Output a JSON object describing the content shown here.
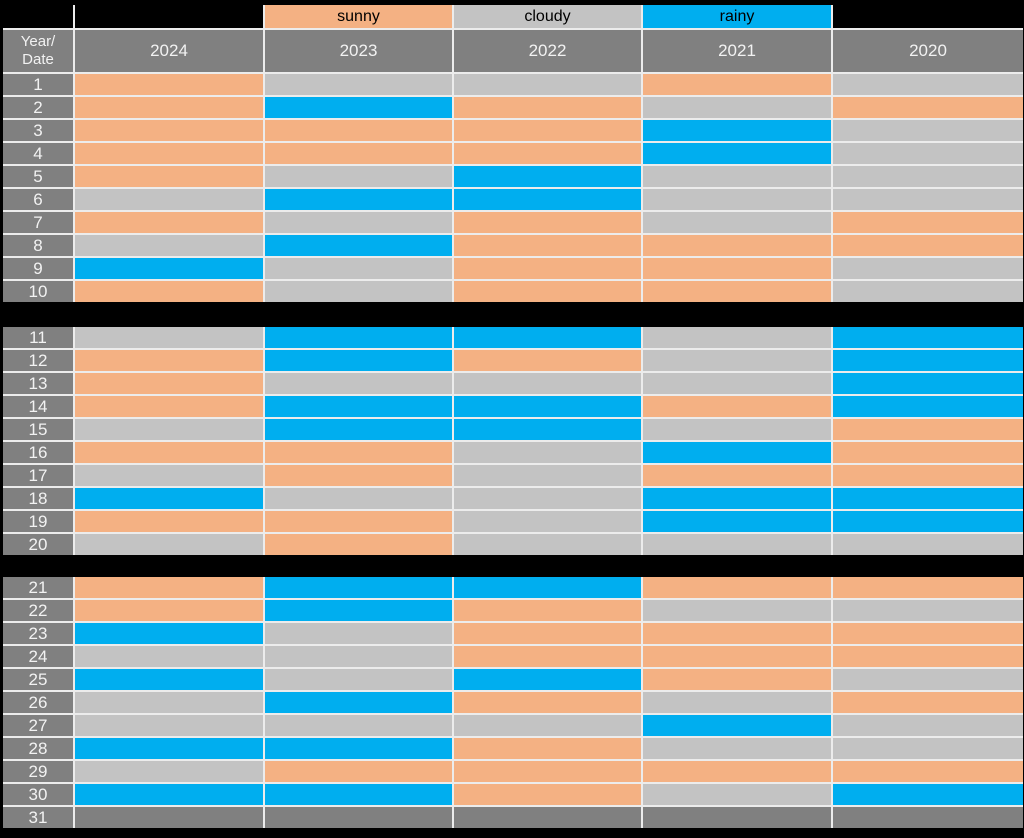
{
  "legend": {
    "items": [
      {
        "id": "sunny",
        "label": "sunny"
      },
      {
        "id": "cloudy",
        "label": "cloudy"
      },
      {
        "id": "rainy",
        "label": "rainy"
      }
    ]
  },
  "header": {
    "corner_label": "Year/\nDate",
    "years": [
      "2024",
      "2023",
      "2022",
      "2021",
      "2020"
    ]
  },
  "colors": {
    "sunny": "#F4B183",
    "cloudy": "#C3C3C3",
    "rainy": "#00AEEF",
    "empty": "#808080",
    "header_bg": "#808080",
    "header_text": "#F2F2F2",
    "legend_text": "#000000",
    "grid_line": "#ECECEC",
    "background": "#000000"
  },
  "chart_data": {
    "type": "heatmap",
    "columns": [
      "2024",
      "2023",
      "2022",
      "2021",
      "2020"
    ],
    "row_axis_label": "Year/Date",
    "legend_entries": [
      "sunny",
      "cloudy",
      "rainy"
    ],
    "legend_position": "top",
    "row_blocks": [
      [
        1,
        10
      ],
      [
        11,
        20
      ],
      [
        21,
        31
      ]
    ],
    "dates": [
      1,
      2,
      3,
      4,
      5,
      6,
      7,
      8,
      9,
      10,
      11,
      12,
      13,
      14,
      15,
      16,
      17,
      18,
      19,
      20,
      21,
      22,
      23,
      24,
      25,
      26,
      27,
      28,
      29,
      30,
      31
    ],
    "values": [
      [
        "sunny",
        "cloudy",
        "cloudy",
        "sunny",
        "cloudy"
      ],
      [
        "sunny",
        "rainy",
        "sunny",
        "cloudy",
        "sunny"
      ],
      [
        "sunny",
        "sunny",
        "sunny",
        "rainy",
        "cloudy"
      ],
      [
        "sunny",
        "sunny",
        "sunny",
        "rainy",
        "cloudy"
      ],
      [
        "sunny",
        "cloudy",
        "rainy",
        "cloudy",
        "cloudy"
      ],
      [
        "cloudy",
        "rainy",
        "rainy",
        "cloudy",
        "cloudy"
      ],
      [
        "sunny",
        "cloudy",
        "sunny",
        "cloudy",
        "sunny"
      ],
      [
        "cloudy",
        "rainy",
        "sunny",
        "sunny",
        "sunny"
      ],
      [
        "rainy",
        "cloudy",
        "sunny",
        "sunny",
        "cloudy"
      ],
      [
        "sunny",
        "cloudy",
        "sunny",
        "sunny",
        "cloudy"
      ],
      [
        "cloudy",
        "rainy",
        "rainy",
        "cloudy",
        "rainy"
      ],
      [
        "sunny",
        "rainy",
        "sunny",
        "cloudy",
        "rainy"
      ],
      [
        "sunny",
        "cloudy",
        "cloudy",
        "cloudy",
        "rainy"
      ],
      [
        "sunny",
        "rainy",
        "rainy",
        "sunny",
        "rainy"
      ],
      [
        "cloudy",
        "rainy",
        "rainy",
        "cloudy",
        "sunny"
      ],
      [
        "sunny",
        "sunny",
        "cloudy",
        "rainy",
        "sunny"
      ],
      [
        "cloudy",
        "sunny",
        "cloudy",
        "sunny",
        "sunny"
      ],
      [
        "rainy",
        "cloudy",
        "cloudy",
        "rainy",
        "rainy"
      ],
      [
        "sunny",
        "sunny",
        "cloudy",
        "rainy",
        "rainy"
      ],
      [
        "cloudy",
        "sunny",
        "cloudy",
        "cloudy",
        "cloudy"
      ],
      [
        "sunny",
        "rainy",
        "rainy",
        "sunny",
        "sunny"
      ],
      [
        "sunny",
        "rainy",
        "sunny",
        "cloudy",
        "cloudy"
      ],
      [
        "rainy",
        "cloudy",
        "sunny",
        "sunny",
        "sunny"
      ],
      [
        "cloudy",
        "cloudy",
        "sunny",
        "sunny",
        "sunny"
      ],
      [
        "rainy",
        "cloudy",
        "rainy",
        "sunny",
        "cloudy"
      ],
      [
        "cloudy",
        "rainy",
        "sunny",
        "cloudy",
        "sunny"
      ],
      [
        "cloudy",
        "cloudy",
        "cloudy",
        "rainy",
        "cloudy"
      ],
      [
        "rainy",
        "rainy",
        "sunny",
        "cloudy",
        "cloudy"
      ],
      [
        "cloudy",
        "sunny",
        "sunny",
        "sunny",
        "sunny"
      ],
      [
        "rainy",
        "rainy",
        "sunny",
        "cloudy",
        "rainy"
      ],
      [
        "empty",
        "empty",
        "empty",
        "empty",
        "empty"
      ]
    ]
  }
}
